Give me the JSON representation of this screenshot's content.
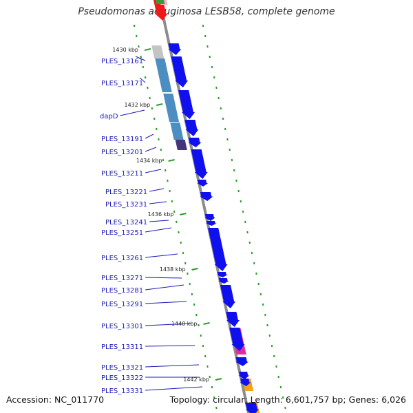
{
  "title": "Pseudomonas aeruginosa LESB58, complete genome",
  "footer": {
    "accession": "Accession: NC_011770",
    "summary": "Topology: circular; Length: 6,601,757 bp; Genes: 6,026"
  },
  "colors": {
    "cds": "#1010ee",
    "backbone": "#8c8c8c",
    "gc_tick": "#2a9a2a",
    "label": "#1a1ab4",
    "steelblue": "#4d8ec2",
    "grey": "#c4c4c4",
    "indigo": "#45357e",
    "magenta": "#e8299a",
    "orange": "#f6a11c",
    "red": "#ee1a1a",
    "green": "#3a9a3a",
    "pink": "#f2b7c2"
  },
  "kbp_ticks": [
    "1430 kbp",
    "1432 kbp",
    "1434 kbp",
    "1436 kbp",
    "1438 kbp",
    "1440 kbp",
    "1442 kbp"
  ],
  "locus_labels": [
    "PLES_13161",
    "PLES_13171",
    "dapD",
    "PLES_13191",
    "PLES_13201",
    "PLES_13211",
    "PLES_13221",
    "PLES_13231",
    "PLES_13241",
    "PLES_13251",
    "PLES_13261",
    "PLES_13271",
    "PLES_13281",
    "PLES_13291",
    "PLES_13301",
    "PLES_13311",
    "PLES_13321",
    "PLES_13322",
    "PLES_13331"
  ]
}
